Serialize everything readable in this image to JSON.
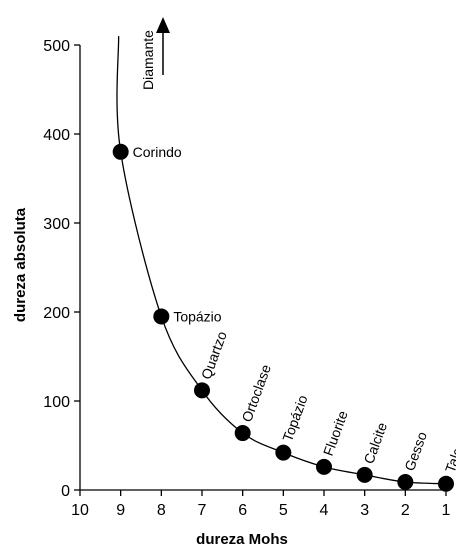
{
  "chart_data": {
    "type": "scatter",
    "title": "",
    "xlabel": "dureza Mohs",
    "ylabel": "dureza absoluta",
    "xlim": [
      10,
      1
    ],
    "ylim": [
      0,
      500
    ],
    "x_ticks": [
      "10",
      "9",
      "8",
      "7",
      "6",
      "5",
      "4",
      "3",
      "2",
      "1"
    ],
    "y_ticks": [
      "0",
      "100",
      "200",
      "300",
      "400",
      "500"
    ],
    "grid": false,
    "legend": "none",
    "points": [
      {
        "label": "Corindo",
        "x": 9,
        "y": 380
      },
      {
        "label": "Topázio",
        "x": 8,
        "y": 195
      },
      {
        "label": "Quartzo",
        "x": 7,
        "y": 112
      },
      {
        "label": "Ortoclase",
        "x": 6,
        "y": 64
      },
      {
        "label": "Topázio",
        "x": 5,
        "y": 42
      },
      {
        "label": "Fluorite",
        "x": 4,
        "y": 26
      },
      {
        "label": "Calcite",
        "x": 3,
        "y": 17
      },
      {
        "label": "Gesso",
        "x": 2,
        "y": 9
      },
      {
        "label": "Talco",
        "x": 1,
        "y": 7
      }
    ],
    "annotation": {
      "label": "Diamante",
      "direction": "up"
    }
  }
}
